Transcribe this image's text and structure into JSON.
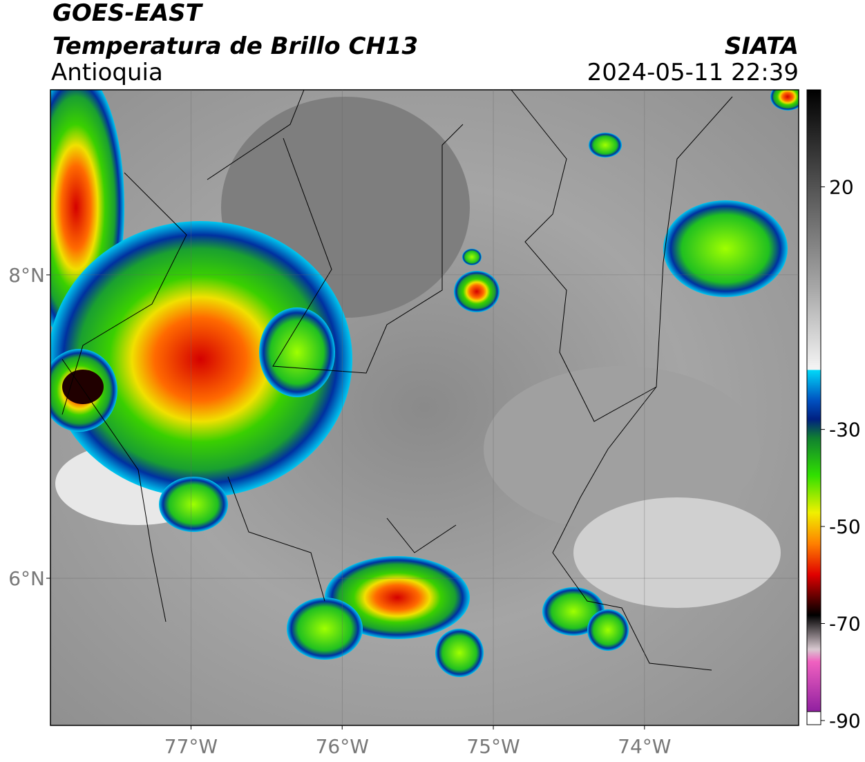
{
  "header": {
    "title": "GOES-EAST",
    "subtitle": "Temperatura de Brillo CH13",
    "region": "Antioquia",
    "source": "SIATA",
    "datetime": "2024-05-11 22:39"
  },
  "map": {
    "xlim": [
      -77.93,
      -72.98
    ],
    "ylim": [
      5.03,
      9.22
    ],
    "xticks": [
      {
        "value": -77,
        "label": "77°W"
      },
      {
        "value": -76,
        "label": "76°W"
      },
      {
        "value": -75,
        "label": "75°W"
      },
      {
        "value": -74,
        "label": "74°W"
      }
    ],
    "yticks": [
      {
        "value": 6,
        "label": "6°N"
      },
      {
        "value": 8,
        "label": "8°N"
      }
    ],
    "grid": true
  },
  "colorbar": {
    "lim": [
      -91,
      40
    ],
    "ticks": [
      20,
      -30,
      -50,
      -70,
      -90
    ]
  }
}
